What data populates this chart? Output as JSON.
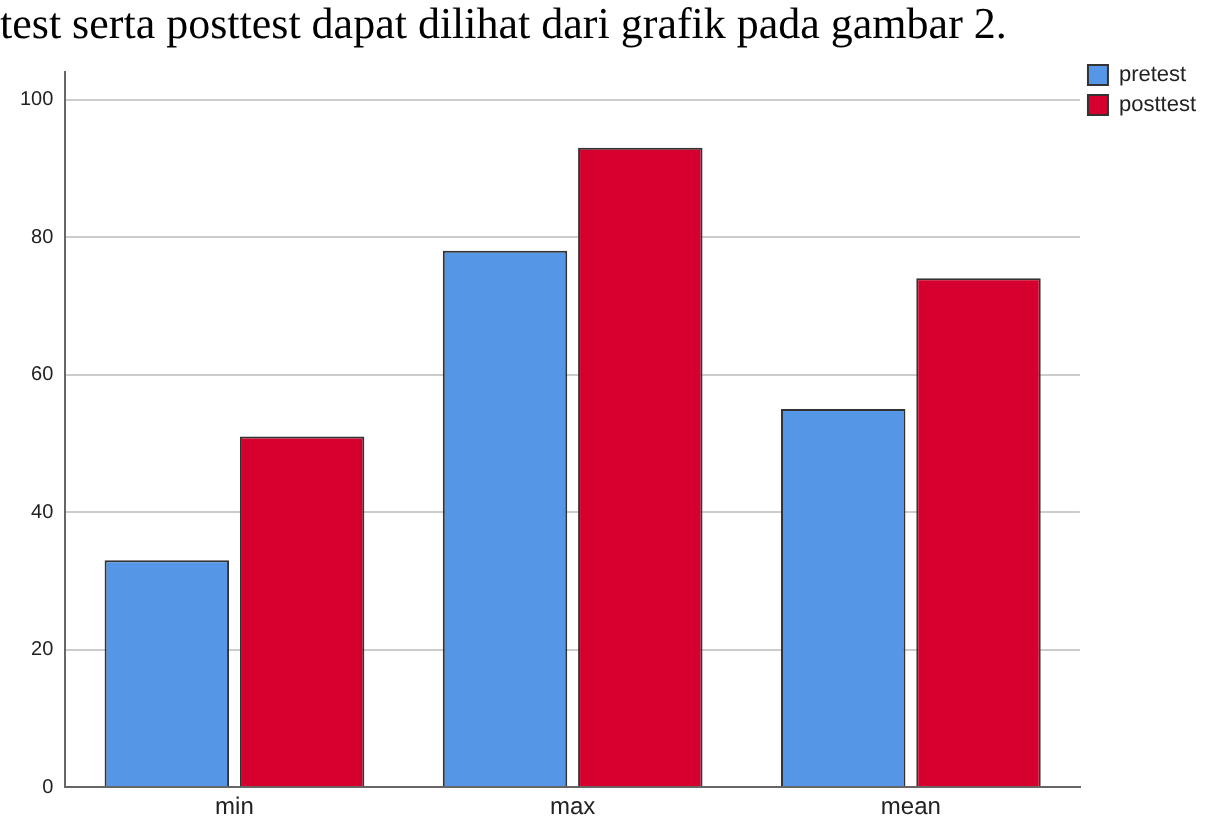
{
  "chart_data": {
    "type": "bar",
    "annotations": [
      "test serta posttest dapat dilihat dari grafik pada gambar 2."
    ],
    "categories": [
      "min",
      "max",
      "mean"
    ],
    "series": [
      {
        "name": "pretest",
        "color": "#5596e6",
        "values": [
          33,
          78,
          55
        ]
      },
      {
        "name": "posttest",
        "color": "#d5002e",
        "values": [
          51,
          93,
          74
        ]
      }
    ],
    "ylim": [
      0,
      104
    ],
    "yticks": [
      0,
      20,
      40,
      60,
      80,
      100
    ],
    "grid": "y",
    "legend": "top right"
  }
}
